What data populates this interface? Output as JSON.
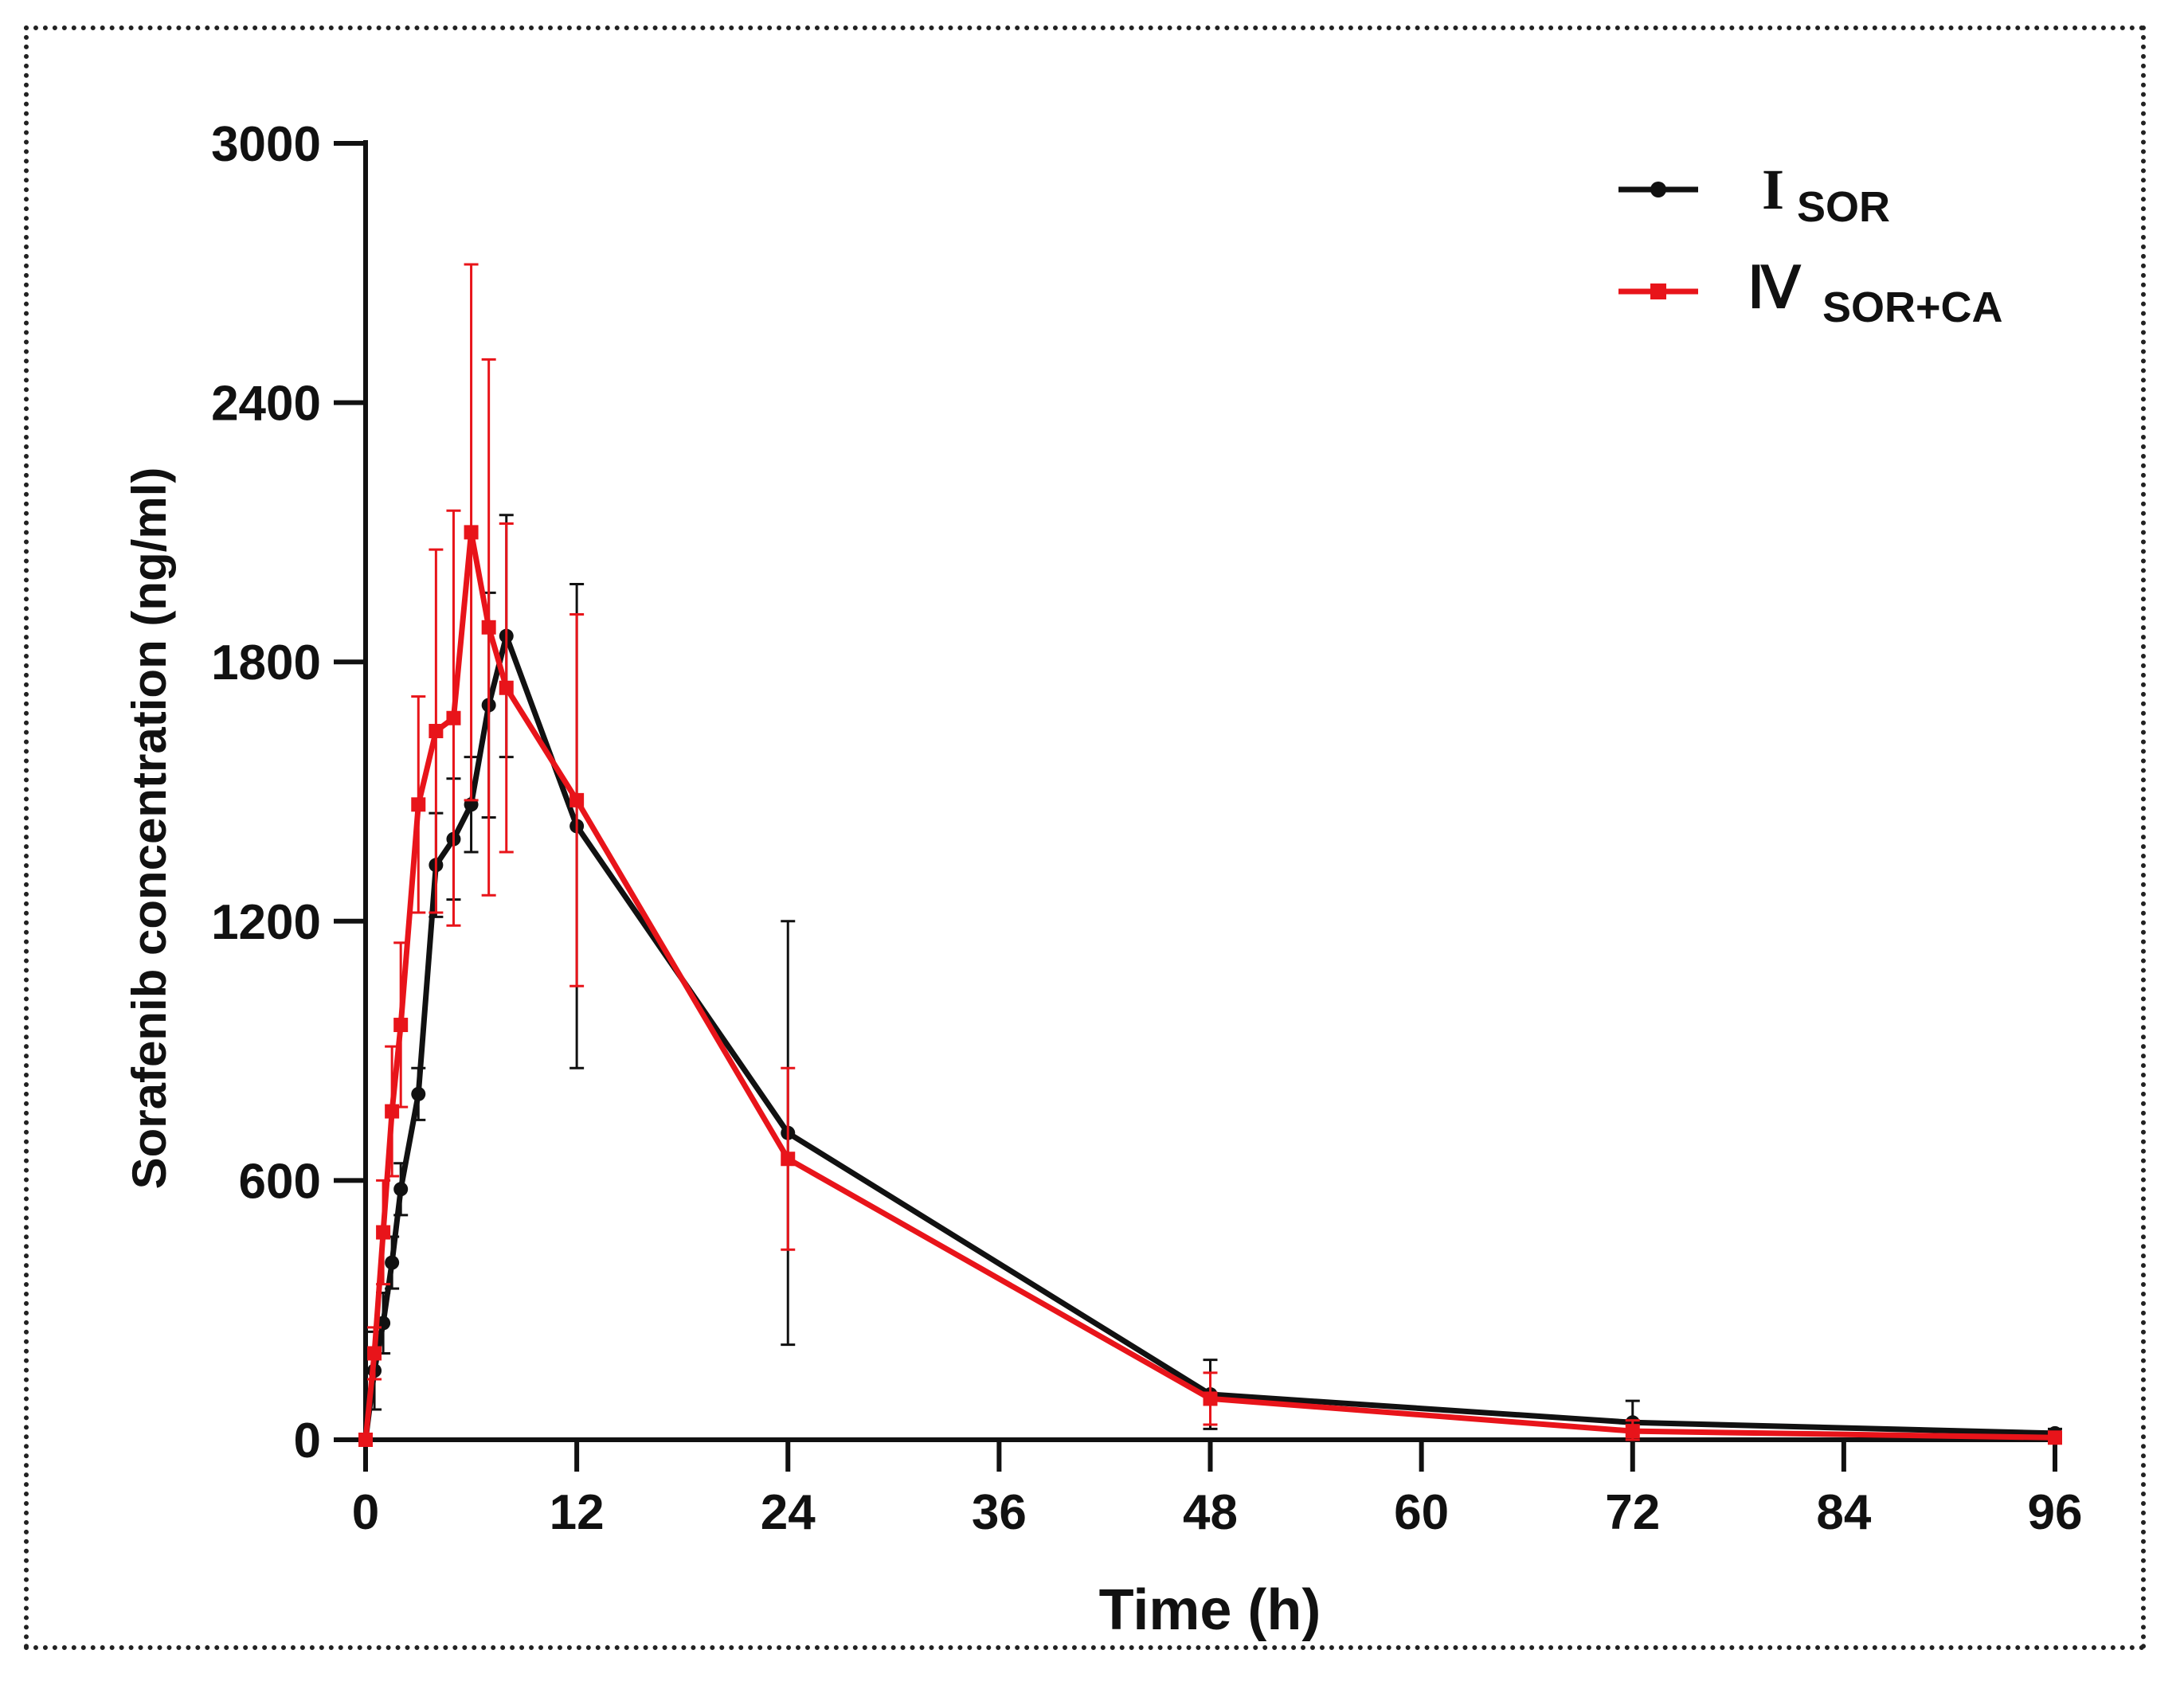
{
  "chart_data": {
    "type": "line",
    "title": "",
    "xlabel": "Time (h)",
    "ylabel": "Sorafenib concentration (ng/ml)",
    "xlim": [
      0,
      96
    ],
    "ylim": [
      0,
      3000
    ],
    "xticks": [
      0,
      12,
      24,
      36,
      48,
      60,
      72,
      84,
      96
    ],
    "yticks": [
      0,
      600,
      1200,
      1800,
      2400,
      3000
    ],
    "legend_position": "top-right",
    "series": [
      {
        "name": "I",
        "subscript": "SOR",
        "color": "#111111",
        "marker": "circle",
        "x": [
          0,
          0.5,
          1,
          1.5,
          2,
          3,
          4,
          5,
          6,
          7,
          8,
          12,
          24,
          48,
          72,
          96
        ],
        "y": [
          0,
          160,
          270,
          410,
          580,
          800,
          1330,
          1390,
          1470,
          1700,
          1860,
          1420,
          710,
          105,
          40,
          15
        ],
        "err": [
          0,
          90,
          70,
          60,
          60,
          60,
          120,
          140,
          110,
          260,
          280,
          560,
          490,
          80,
          50,
          10
        ]
      },
      {
        "name": "Ⅳ",
        "subscript": "SOR+CA",
        "color": "#e8141a",
        "marker": "square",
        "x": [
          0,
          0.5,
          1,
          1.5,
          2,
          3,
          4,
          5,
          6,
          7,
          8,
          12,
          24,
          48,
          72,
          96
        ],
        "y": [
          0,
          200,
          480,
          760,
          960,
          1470,
          1640,
          1670,
          2100,
          1880,
          1740,
          1480,
          650,
          95,
          20,
          5
        ],
        "err": [
          0,
          60,
          120,
          150,
          190,
          250,
          420,
          480,
          620,
          620,
          380,
          430,
          210,
          60,
          25,
          5
        ]
      }
    ]
  }
}
